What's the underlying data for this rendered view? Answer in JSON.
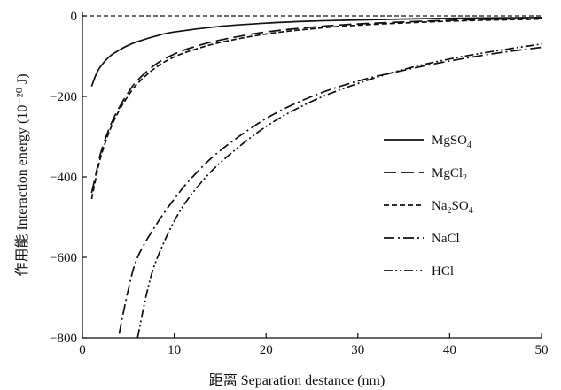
{
  "chart_data": {
    "type": "line",
    "xlabel": "距离 Separation destance (nm)",
    "ylabel": "作用能 Interaction energy (10⁻²⁰ J)",
    "xlim": [
      0,
      50
    ],
    "ylim": [
      -800,
      0
    ],
    "xticks": [
      0,
      10,
      20,
      30,
      40,
      50
    ],
    "yticks": [
      0,
      -200,
      -400,
      -600,
      -800
    ],
    "xtick_labels": [
      "0",
      "10",
      "20",
      "30",
      "40",
      "50"
    ],
    "ytick_labels": [
      "0",
      "−200",
      "−400",
      "−600",
      "−800"
    ],
    "grid": false,
    "legend_position": "right",
    "series": [
      {
        "name": "MgSO4",
        "legend_label": {
          "main": "MgSO",
          "sub": "4",
          "tail": ""
        },
        "dash": "solid",
        "x": [
          1,
          1.5,
          2,
          3,
          4,
          5,
          6,
          8,
          10,
          15,
          20,
          25,
          30,
          40,
          50
        ],
        "y": [
          -175,
          -145,
          -125,
          -100,
          -85,
          -73,
          -64,
          -50,
          -40,
          -26,
          -18,
          -13,
          -10,
          -6,
          -4
        ]
      },
      {
        "name": "MgCl2",
        "legend_label": {
          "main": "MgCl",
          "sub": "2",
          "tail": ""
        },
        "dash": "long-dash",
        "x": [
          1,
          1.5,
          2,
          3,
          4,
          5,
          6,
          8,
          10,
          12,
          15,
          20,
          25,
          30,
          40,
          50
        ],
        "y": [
          -440,
          -390,
          -340,
          -275,
          -228,
          -190,
          -160,
          -120,
          -95,
          -78,
          -60,
          -40,
          -28,
          -20,
          -11,
          -6
        ]
      },
      {
        "name": "Na2SO4",
        "legend_label": {
          "main": "Na",
          "sub": "2",
          "tail": "SO4"
        },
        "dash": "short-dash",
        "x": [
          1,
          1.5,
          2,
          3,
          4,
          5,
          6,
          8,
          10,
          12,
          15,
          20,
          25,
          30,
          40,
          50
        ],
        "y": [
          -455,
          -400,
          -350,
          -283,
          -235,
          -198,
          -168,
          -128,
          -102,
          -85,
          -66,
          -45,
          -32,
          -23,
          -13,
          -8
        ]
      },
      {
        "name": "NaCl",
        "legend_label": {
          "main": "NaCl",
          "sub": "",
          "tail": ""
        },
        "dash": "dash-dot",
        "x": [
          4,
          5,
          6,
          8,
          10,
          12,
          15,
          20,
          25,
          30,
          35,
          40,
          45,
          50
        ],
        "y": [
          -790,
          -680,
          -600,
          -520,
          -455,
          -400,
          -335,
          -255,
          -200,
          -162,
          -135,
          -112,
          -93,
          -78
        ]
      },
      {
        "name": "HCl",
        "legend_label": {
          "main": "HCl",
          "sub": "",
          "tail": ""
        },
        "dash": "dash-dot-dot",
        "x": [
          6,
          7,
          8,
          10,
          12,
          15,
          20,
          25,
          30,
          35,
          40,
          45,
          50
        ],
        "y": [
          -800,
          -690,
          -610,
          -510,
          -440,
          -365,
          -275,
          -212,
          -168,
          -133,
          -107,
          -87,
          -70
        ]
      }
    ]
  }
}
